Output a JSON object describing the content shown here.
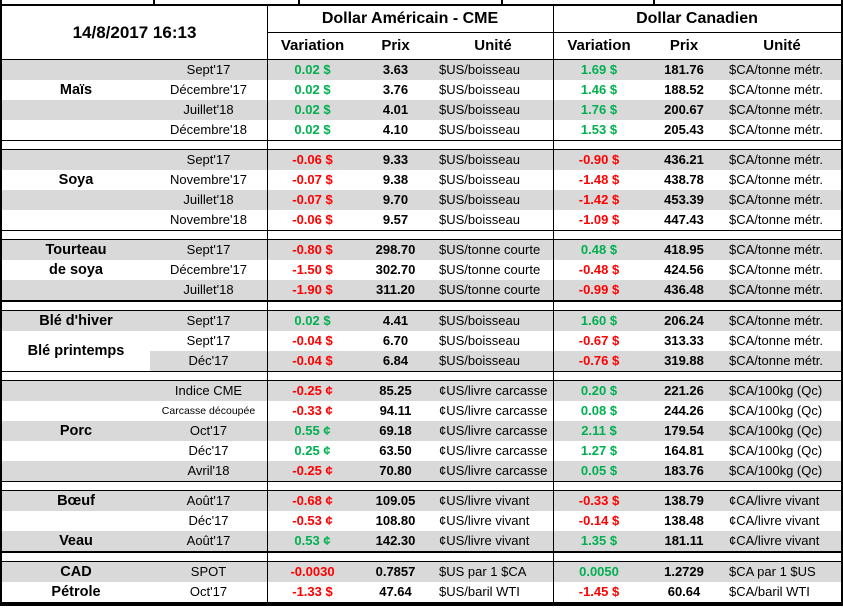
{
  "title": "14/8/2017 16:13",
  "header": {
    "usd_title": "Dollar Américain - CME",
    "cad_title": "Dollar Canadien",
    "cols": [
      "Variation",
      "Prix",
      "Unité"
    ]
  },
  "colors": {
    "positive": "#00B050",
    "negative": "#FF0000",
    "stripe": "#D9D9D9",
    "border": "#000000"
  },
  "sections": [
    {
      "name": "mais",
      "labels": [
        {
          "text": "Maïs",
          "row": 1
        }
      ],
      "rows": [
        {
          "month": "Sept'17",
          "us_var": "0.02 $",
          "us_dir": "up",
          "us_prix": "3.63",
          "us_unit": "$US/boisseau",
          "ca_var": "1.69 $",
          "ca_dir": "up",
          "ca_prix": "181.76",
          "ca_unit": "$CA/tonne métr."
        },
        {
          "month": "Décembre'17",
          "us_var": "0.02 $",
          "us_dir": "up",
          "us_prix": "3.76",
          "us_unit": "$US/boisseau",
          "ca_var": "1.46 $",
          "ca_dir": "up",
          "ca_prix": "188.52",
          "ca_unit": "$CA/tonne métr."
        },
        {
          "month": "Juillet'18",
          "us_var": "0.02 $",
          "us_dir": "up",
          "us_prix": "4.01",
          "us_unit": "$US/boisseau",
          "ca_var": "1.76 $",
          "ca_dir": "up",
          "ca_prix": "200.67",
          "ca_unit": "$CA/tonne métr."
        },
        {
          "month": "Décembre'18",
          "us_var": "0.02 $",
          "us_dir": "up",
          "us_prix": "4.10",
          "us_unit": "$US/boisseau",
          "ca_var": "1.53 $",
          "ca_dir": "up",
          "ca_prix": "205.43",
          "ca_unit": "$CA/tonne métr."
        }
      ]
    },
    {
      "name": "soya",
      "labels": [
        {
          "text": "Soya",
          "row": 1
        }
      ],
      "rows": [
        {
          "month": "Sept'17",
          "us_var": "-0.06 $",
          "us_dir": "down",
          "us_prix": "9.33",
          "us_unit": "$US/boisseau",
          "ca_var": "-0.90 $",
          "ca_dir": "down",
          "ca_prix": "436.21",
          "ca_unit": "$CA/tonne métr."
        },
        {
          "month": "Novembre'17",
          "us_var": "-0.07 $",
          "us_dir": "down",
          "us_prix": "9.38",
          "us_unit": "$US/boisseau",
          "ca_var": "-1.48 $",
          "ca_dir": "down",
          "ca_prix": "438.78",
          "ca_unit": "$CA/tonne métr."
        },
        {
          "month": "Juillet'18",
          "us_var": "-0.07 $",
          "us_dir": "down",
          "us_prix": "9.70",
          "us_unit": "$US/boisseau",
          "ca_var": "-1.42 $",
          "ca_dir": "down",
          "ca_prix": "453.39",
          "ca_unit": "$CA/tonne métr."
        },
        {
          "month": "Novembre'18",
          "us_var": "-0.06 $",
          "us_dir": "down",
          "us_prix": "9.57",
          "us_unit": "$US/boisseau",
          "ca_var": "-1.09 $",
          "ca_dir": "down",
          "ca_prix": "447.43",
          "ca_unit": "$CA/tonne métr."
        }
      ]
    },
    {
      "name": "tourteau-de-soya",
      "thick_bottom": true,
      "labels": [
        {
          "text": "Tourteau",
          "row": 0
        },
        {
          "text": "de soya",
          "row": 1
        }
      ],
      "rows": [
        {
          "month": "Sept'17",
          "us_var": "-0.80 $",
          "us_dir": "down",
          "us_prix": "298.70",
          "us_unit": "$US/tonne courte",
          "ca_var": "0.48 $",
          "ca_dir": "up",
          "ca_prix": "418.95",
          "ca_unit": "$CA/tonne métr."
        },
        {
          "month": "Décembre'17",
          "us_var": "-1.50 $",
          "us_dir": "down",
          "us_prix": "302.70",
          "us_unit": "$US/tonne courte",
          "ca_var": "-0.48 $",
          "ca_dir": "down",
          "ca_prix": "424.56",
          "ca_unit": "$CA/tonne métr."
        },
        {
          "month": "Juillet'18",
          "us_var": "-1.90 $",
          "us_dir": "down",
          "us_prix": "311.20",
          "us_unit": "$US/tonne courte",
          "ca_var": "-0.99 $",
          "ca_dir": "down",
          "ca_prix": "436.48",
          "ca_unit": "$CA/tonne métr."
        }
      ]
    },
    {
      "name": "ble",
      "labels": [
        {
          "text": "Blé d'hiver",
          "row": 0
        }
      ],
      "overlay_label": {
        "text": "Blé printemps",
        "from_row": 1,
        "span": 2
      },
      "rows": [
        {
          "month": "Sept'17",
          "us_var": "0.02 $",
          "us_dir": "up",
          "us_prix": "4.41",
          "us_unit": "$US/boisseau",
          "ca_var": "1.60 $",
          "ca_dir": "up",
          "ca_prix": "206.24",
          "ca_unit": "$CA/tonne métr."
        },
        {
          "month": "Sept'17",
          "us_var": "-0.04 $",
          "us_dir": "down",
          "us_prix": "6.70",
          "us_unit": "$US/boisseau",
          "ca_var": "-0.67 $",
          "ca_dir": "down",
          "ca_prix": "313.33",
          "ca_unit": "$CA/tonne métr."
        },
        {
          "month": "Déc'17",
          "us_var": "-0.04 $",
          "us_dir": "down",
          "us_prix": "6.84",
          "us_unit": "$US/boisseau",
          "ca_var": "-0.76 $",
          "ca_dir": "down",
          "ca_prix": "319.88",
          "ca_unit": "$CA/tonne métr."
        }
      ]
    },
    {
      "name": "porc",
      "labels": [
        {
          "text": "Porc",
          "row": 2
        }
      ],
      "rows": [
        {
          "month": "Indice CME",
          "us_var": "-0.25 ¢",
          "us_dir": "down",
          "us_prix": "85.25",
          "us_unit": "¢US/livre carcasse",
          "ca_var": "0.20 $",
          "ca_dir": "up",
          "ca_prix": "221.26",
          "ca_unit": "$CA/100kg (Qc)"
        },
        {
          "month": "Carcasse découpée",
          "month_small": true,
          "us_var": "-0.33 ¢",
          "us_dir": "down",
          "us_prix": "94.11",
          "us_unit": "¢US/livre carcasse",
          "ca_var": "0.08 $",
          "ca_dir": "up",
          "ca_prix": "244.26",
          "ca_unit": "$CA/100kg (Qc)"
        },
        {
          "month": "Oct'17",
          "us_var": "0.55 ¢",
          "us_dir": "up",
          "us_prix": "69.18",
          "us_unit": "¢US/livre carcasse",
          "ca_var": "2.11 $",
          "ca_dir": "up",
          "ca_prix": "179.54",
          "ca_unit": "$CA/100kg (Qc)"
        },
        {
          "month": "Déc'17",
          "us_var": "0.25 ¢",
          "us_dir": "up",
          "us_prix": "63.50",
          "us_unit": "¢US/livre carcasse",
          "ca_var": "1.27 $",
          "ca_dir": "up",
          "ca_prix": "164.81",
          "ca_unit": "$CA/100kg (Qc)"
        },
        {
          "month": "Avril'18",
          "us_var": "-0.25 ¢",
          "us_dir": "down",
          "us_prix": "70.80",
          "us_unit": "¢US/livre carcasse",
          "ca_var": "0.05 $",
          "ca_dir": "up",
          "ca_prix": "183.76",
          "ca_unit": "$CA/100kg (Qc)"
        }
      ]
    },
    {
      "name": "boeuf-veau",
      "thick_bottom": true,
      "labels": [
        {
          "text": "Bœuf",
          "row": 0
        },
        {
          "text": "Veau",
          "row": 2
        }
      ],
      "rows": [
        {
          "month": "Août'17",
          "us_var": "-0.68 ¢",
          "us_dir": "down",
          "us_prix": "109.05",
          "us_unit": "¢US/livre vivant",
          "ca_var": "-0.33 $",
          "ca_dir": "down",
          "ca_prix": "138.79",
          "ca_unit": "¢CA/livre vivant"
        },
        {
          "month": "Déc'17",
          "us_var": "-0.53 ¢",
          "us_dir": "down",
          "us_prix": "108.80",
          "us_unit": "¢US/livre vivant",
          "ca_var": "-0.14 $",
          "ca_dir": "down",
          "ca_prix": "138.48",
          "ca_unit": "¢CA/livre vivant"
        },
        {
          "month": "Août'17",
          "us_var": "0.53 ¢",
          "us_dir": "up",
          "us_prix": "142.30",
          "us_unit": "¢US/livre vivant",
          "ca_var": "1.35 $",
          "ca_dir": "up",
          "ca_prix": "181.11",
          "ca_unit": "¢CA/livre vivant"
        }
      ]
    },
    {
      "name": "cad-petrole",
      "labels": [
        {
          "text": "CAD",
          "row": 0
        },
        {
          "text": "Pétrole",
          "row": 1
        }
      ],
      "rows": [
        {
          "month": "SPOT",
          "us_var": "-0.0030",
          "us_dir": "down",
          "us_prix": "0.7857",
          "us_unit": "$US par 1 $CA",
          "ca_var": "0.0050",
          "ca_dir": "up",
          "ca_prix": "1.2729",
          "ca_unit": "$CA par 1 $US"
        },
        {
          "month": "Oct'17",
          "us_var": "-1.33 $",
          "us_dir": "down",
          "us_prix": "47.64",
          "us_unit": "$US/baril WTI",
          "ca_var": "-1.45 $",
          "ca_dir": "down",
          "ca_prix": "60.64",
          "ca_unit": "$CA/baril WTI"
        }
      ]
    }
  ]
}
